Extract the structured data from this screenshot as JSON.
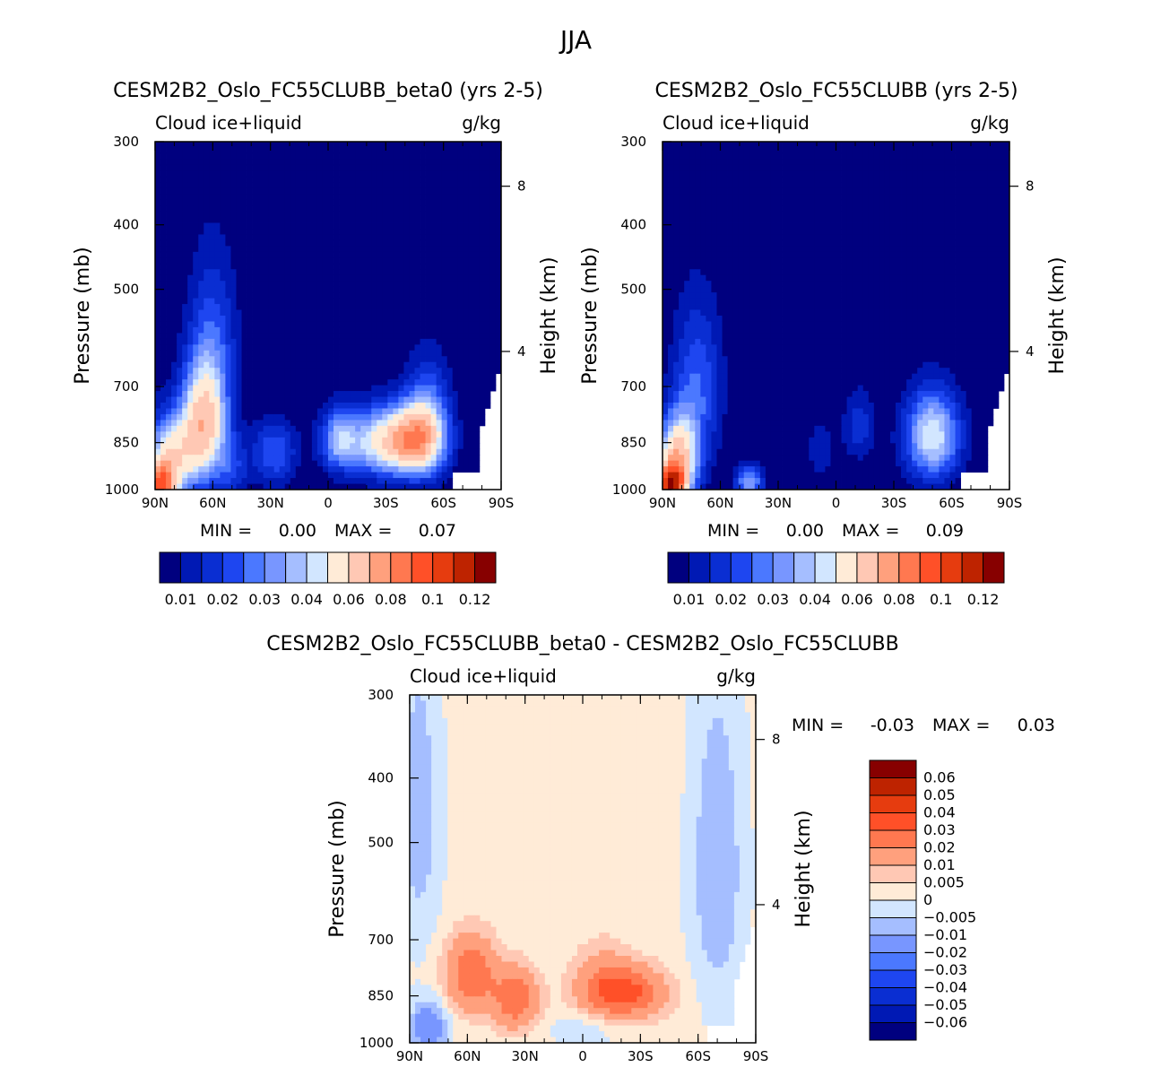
{
  "title": "JJA",
  "units": "g/kg",
  "variable": "Cloud ice+liquid",
  "colors": {
    "abs_levels": [
      "#00007f",
      "#0019b4",
      "#0a2ed2",
      "#1e46f0",
      "#4b78ff",
      "#7896ff",
      "#a5beff",
      "#d2e6ff",
      "#ffebd7",
      "#ffc8b4",
      "#ffa07d",
      "#ff7850",
      "#ff5028",
      "#e63c0f",
      "#be2300",
      "#870000"
    ],
    "diff_levels": [
      "#870000",
      "#be2300",
      "#e63c0f",
      "#ff5028",
      "#ff7850",
      "#ffa07d",
      "#ffc8b4",
      "#ffebd7",
      "#d2e6ff",
      "#a5beff",
      "#7896ff",
      "#4b78ff",
      "#1e46f0",
      "#0a2ed2",
      "#0019b4",
      "#00007f"
    ]
  },
  "chart_data": [
    {
      "type": "heatmap",
      "title": "CESM2B2_Oslo_FC55CLUBB_beta0 (yrs 2-5)",
      "left_label": "Cloud ice+liquid",
      "right_label": "g/kg",
      "ylabel": "Pressure (mb)",
      "y2label": "Height (km)",
      "x_ticks": [
        "90N",
        "60N",
        "30N",
        "0",
        "30S",
        "60S",
        "90S"
      ],
      "y_ticks": [
        "300",
        "400",
        "500",
        "700",
        "850",
        "1000"
      ],
      "y2_ticks": [
        "8",
        "4"
      ],
      "xlim": [
        90,
        -90
      ],
      "ylim": [
        1000,
        300
      ],
      "stats": {
        "min_label": "MIN =",
        "min": "0.00",
        "max_label": "MAX =",
        "max": "0.07"
      },
      "colorbar_labels": [
        "0.01",
        "0.02",
        "0.03",
        "0.04",
        "0.06",
        "0.08",
        "0.1",
        "0.12"
      ],
      "blobs": [
        {
          "lat": 65,
          "p": 800,
          "amp": 0.05,
          "slat": 8,
          "sp": 110
        },
        {
          "lat": 82,
          "p": 900,
          "amp": 0.045,
          "slat": 9,
          "sp": 90
        },
        {
          "lat": 87,
          "p": 990,
          "amp": 0.065,
          "slat": 5,
          "sp": 50
        },
        {
          "lat": 60,
          "p": 620,
          "amp": 0.018,
          "slat": 9,
          "sp": 140
        },
        {
          "lat": 28,
          "p": 880,
          "amp": 0.02,
          "slat": 8,
          "sp": 70
        },
        {
          "lat": 50,
          "p": 930,
          "amp": 0.014,
          "slat": 6,
          "sp": 70
        },
        {
          "lat": -5,
          "p": 840,
          "amp": 0.022,
          "slat": 6,
          "sp": 60
        },
        {
          "lat": -28,
          "p": 850,
          "amp": 0.04,
          "slat": 16,
          "sp": 70
        },
        {
          "lat": -45,
          "p": 840,
          "amp": 0.04,
          "slat": 10,
          "sp": 70
        },
        {
          "lat": -52,
          "p": 780,
          "amp": 0.022,
          "slat": 8,
          "sp": 110
        }
      ]
    },
    {
      "type": "heatmap",
      "title": "CESM2B2_Oslo_FC55CLUBB (yrs 2-5)",
      "left_label": "Cloud ice+liquid",
      "right_label": "g/kg",
      "ylabel": "Pressure (mb)",
      "y2label": "Height (km)",
      "x_ticks": [
        "90N",
        "60N",
        "30N",
        "0",
        "30S",
        "60S",
        "90S"
      ],
      "y_ticks": [
        "300",
        "400",
        "500",
        "700",
        "850",
        "1000"
      ],
      "y2_ticks": [
        "8",
        "4"
      ],
      "xlim": [
        90,
        -90
      ],
      "ylim": [
        1000,
        300
      ],
      "stats": {
        "min_label": "MIN =",
        "min": "0.00",
        "max_label": "MAX =",
        "max": "0.09"
      },
      "colorbar_labels": [
        "0.01",
        "0.02",
        "0.03",
        "0.04",
        "0.06",
        "0.08",
        "0.1",
        "0.12"
      ],
      "blobs": [
        {
          "lat": 72,
          "p": 700,
          "amp": 0.02,
          "slat": 9,
          "sp": 140
        },
        {
          "lat": 82,
          "p": 900,
          "amp": 0.055,
          "slat": 7,
          "sp": 90
        },
        {
          "lat": 86,
          "p": 985,
          "amp": 0.085,
          "slat": 5,
          "sp": 45
        },
        {
          "lat": 45,
          "p": 975,
          "amp": 0.03,
          "slat": 5,
          "sp": 40
        },
        {
          "lat": -12,
          "p": 800,
          "amp": 0.013,
          "slat": 6,
          "sp": 70
        },
        {
          "lat": -50,
          "p": 830,
          "amp": 0.04,
          "slat": 10,
          "sp": 90
        },
        {
          "lat": 8,
          "p": 870,
          "amp": 0.01,
          "slat": 5,
          "sp": 60
        }
      ]
    },
    {
      "type": "heatmap",
      "title": "CESM2B2_Oslo_FC55CLUBB_beta0 - CESM2B2_Oslo_FC55CLUBB",
      "left_label": "Cloud ice+liquid",
      "right_label": "g/kg",
      "ylabel": "Pressure (mb)",
      "y2label": "Height (km)",
      "x_ticks": [
        "90N",
        "60N",
        "30N",
        "0",
        "30S",
        "60S",
        "90S"
      ],
      "y_ticks": [
        "300",
        "400",
        "500",
        "700",
        "850",
        "1000"
      ],
      "y2_ticks": [
        "8",
        "4"
      ],
      "xlim": [
        90,
        -90
      ],
      "ylim": [
        1000,
        300
      ],
      "stats": {
        "min_label": "MIN =",
        "min": "-0.03",
        "max_label": "MAX =",
        "max": "0.03"
      },
      "colorbar_labels": [
        "0.06",
        "0.05",
        "0.04",
        "0.03",
        "0.02",
        "0.01",
        "0.005",
        "0",
        "-0.005",
        "-0.01",
        "-0.02",
        "-0.03",
        "-0.04",
        "-0.05",
        "-0.06"
      ],
      "blobs": [
        {
          "lat": 58,
          "p": 790,
          "amp": 0.027,
          "slat": 9,
          "sp": 70
        },
        {
          "lat": 35,
          "p": 860,
          "amp": 0.027,
          "slat": 8,
          "sp": 60
        },
        {
          "lat": -22,
          "p": 840,
          "amp": 0.032,
          "slat": 14,
          "sp": 50
        },
        {
          "lat": -10,
          "p": 800,
          "amp": 0.01,
          "slat": 10,
          "sp": 70
        },
        {
          "lat": 80,
          "p": 950,
          "amp": -0.02,
          "slat": 7,
          "sp": 60
        },
        {
          "lat": -70,
          "p": 550,
          "amp": -0.012,
          "slat": 10,
          "sp": 220
        },
        {
          "lat": 85,
          "p": 450,
          "amp": -0.01,
          "slat": 8,
          "sp": 180
        },
        {
          "lat": 0,
          "p": 960,
          "amp": -0.006,
          "slat": 12,
          "sp": 40
        }
      ]
    }
  ]
}
